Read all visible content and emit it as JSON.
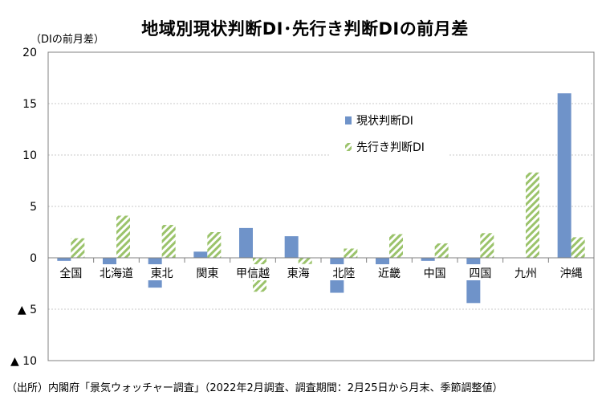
{
  "chart_data": {
    "type": "bar",
    "title": "地域別現状判断DI･先行き判断DIの前月差",
    "unit_label": "（DIの前月差）",
    "source": "（出所）内閣府「景気ウォッチャー調査」（2022年2月調査、調査期間：2月25日から月末、季節調整値）",
    "categories": [
      "全国",
      "北海道",
      "東北",
      "関東",
      "甲信越",
      "東海",
      "北陸",
      "近畿",
      "中国",
      "四国",
      "九州",
      "沖縄"
    ],
    "series": [
      {
        "name": "現状判断DI",
        "color": "#6f93c9",
        "values": [
          -0.3,
          -1.9,
          -2.9,
          0.6,
          2.9,
          2.1,
          -3.4,
          -1.0,
          -0.3,
          -4.4,
          0.0,
          16.0
        ]
      },
      {
        "name": "先行き判断DI",
        "color": "#9bc36b",
        "values": [
          1.9,
          4.1,
          3.2,
          2.5,
          -3.3,
          -0.6,
          0.9,
          2.3,
          1.4,
          2.4,
          8.3,
          2.0
        ]
      }
    ],
    "ylim": [
      -10,
      20
    ],
    "y_ticks": [
      {
        "value": 20,
        "label": "20"
      },
      {
        "value": 15,
        "label": "15"
      },
      {
        "value": 10,
        "label": "10"
      },
      {
        "value": 5,
        "label": "5"
      },
      {
        "value": 0,
        "label": "0"
      },
      {
        "value": -5,
        "label": "▲ 5"
      },
      {
        "value": -10,
        "label": "▲ 10"
      }
    ],
    "grid": true,
    "legend_position": "upper-right-inside"
  }
}
